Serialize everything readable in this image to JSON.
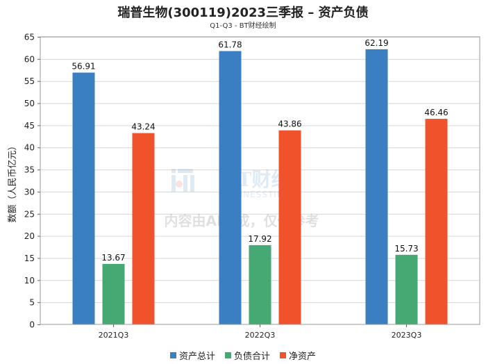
{
  "title": "瑞普生物(300119)2023三季报 – 资产负债",
  "subtitle": "Q1-Q3 - BT财经绘制",
  "watermark": {
    "logo_text": "BT财经",
    "logo_sub": "BUSINESSTIMES",
    "notice": "内容由AI生成，仅供参考"
  },
  "chart_data": {
    "type": "bar",
    "categories": [
      "2021Q3",
      "2022Q3",
      "2023Q3"
    ],
    "series": [
      {
        "name": "资产总计",
        "color": "#3a7fc1",
        "values": [
          56.91,
          61.78,
          62.19
        ]
      },
      {
        "name": "负债合计",
        "color": "#46a873",
        "values": [
          13.67,
          17.92,
          15.73
        ]
      },
      {
        "name": "净资产",
        "color": "#f0532b",
        "values": [
          43.24,
          43.86,
          46.46
        ]
      }
    ],
    "ylabel": "数额（人民币亿元）",
    "ylim": [
      0,
      65
    ],
    "yticks": [
      0,
      5,
      10,
      15,
      20,
      25,
      30,
      35,
      40,
      45,
      50,
      55,
      60,
      65
    ],
    "grid": true,
    "legend_position": "bottom"
  }
}
